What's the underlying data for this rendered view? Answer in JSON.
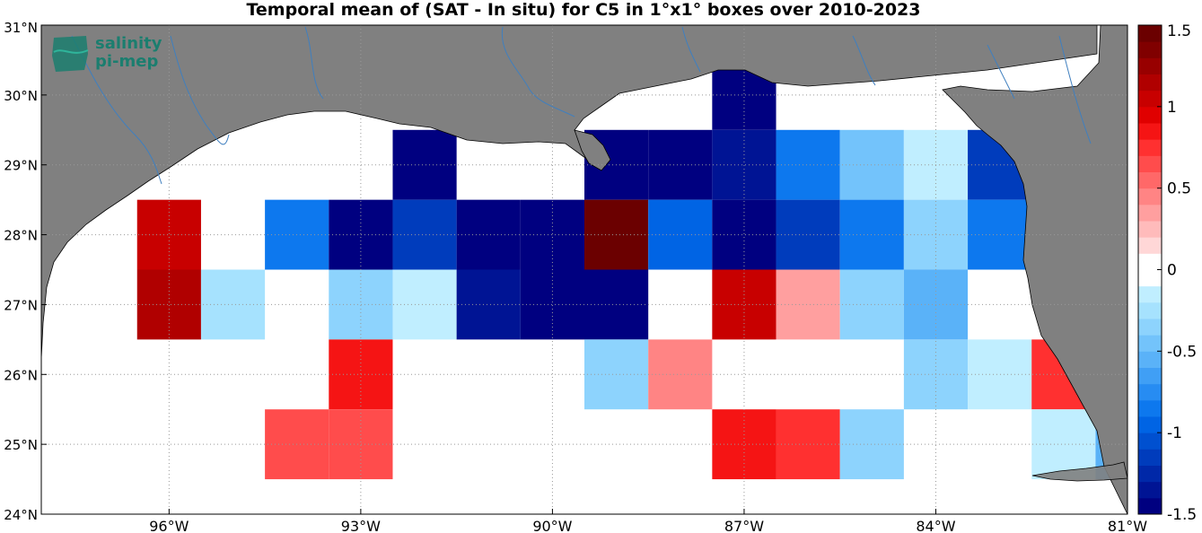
{
  "title": "Temporal mean of (SAT - In situ) for C5 in 1°x1° boxes over 2010-2023",
  "logo": {
    "line1": "salinity",
    "line2": "pi-mep",
    "color": "#1b7e6f"
  },
  "map": {
    "lon_range": [
      -98,
      -81
    ],
    "lat_range": [
      24,
      31
    ],
    "x_ticks": [
      {
        "value": -96,
        "label": "96°W"
      },
      {
        "value": -93,
        "label": "93°W"
      },
      {
        "value": -90,
        "label": "90°W"
      },
      {
        "value": -87,
        "label": "87°W"
      },
      {
        "value": -84,
        "label": "84°W"
      },
      {
        "value": -81,
        "label": "81°W"
      }
    ],
    "y_ticks": [
      {
        "value": 24,
        "label": "24°N"
      },
      {
        "value": 25,
        "label": "25°N"
      },
      {
        "value": 26,
        "label": "26°N"
      },
      {
        "value": 27,
        "label": "27°N"
      },
      {
        "value": 28,
        "label": "28°N"
      },
      {
        "value": 29,
        "label": "29°N"
      },
      {
        "value": 30,
        "label": "30°N"
      },
      {
        "value": 31,
        "label": "31°N"
      }
    ],
    "land_color": "#808080",
    "river_color": "#3f7fbf",
    "grid": true
  },
  "colorbar": {
    "min": -1.5,
    "max": 1.5,
    "ticks": [
      {
        "value": 1.5,
        "label": "1.5"
      },
      {
        "value": 1,
        "label": "1"
      },
      {
        "value": 0.5,
        "label": "0.5"
      },
      {
        "value": 0,
        "label": "0"
      },
      {
        "value": -0.5,
        "label": "-0.5"
      },
      {
        "value": -1,
        "label": "-1"
      },
      {
        "value": -1.5,
        "label": "-1.5"
      }
    ],
    "colors": [
      "#000080",
      "#001494",
      "#0028a8",
      "#003cbc",
      "#0050d0",
      "#0064e4",
      "#0d78ee",
      "#278cf2",
      "#409ff5",
      "#5ab2f8",
      "#73c3fb",
      "#8dd3fd",
      "#a6e2fe",
      "#c0eeff",
      "#ffffff",
      "#ffffff",
      "#ffd7d7",
      "#ffbbbb",
      "#ff9f9f",
      "#ff8484",
      "#ff6868",
      "#ff4c4c",
      "#ff3030",
      "#f51414",
      "#e00000",
      "#c80000",
      "#b00000",
      "#980000",
      "#800000",
      "#6b0000"
    ]
  },
  "chart_data": {
    "type": "heatmap",
    "title": "Temporal mean of (SAT - In situ) for C5 in 1°x1° boxes over 2010-2023",
    "x_label": "",
    "y_label": "",
    "cells": [
      {
        "lon": -96,
        "lat": 28,
        "value": 1.0
      },
      {
        "lon": -96,
        "lat": 27,
        "value": 1.1
      },
      {
        "lon": -95,
        "lat": 27,
        "value": -0.25
      },
      {
        "lon": -94,
        "lat": 28,
        "value": -0.8
      },
      {
        "lon": -93,
        "lat": 28,
        "value": -1.5
      },
      {
        "lon": -93,
        "lat": 27,
        "value": -0.4
      },
      {
        "lon": -93,
        "lat": 26,
        "value": 0.8
      },
      {
        "lon": -94,
        "lat": 25,
        "value": 0.6
      },
      {
        "lon": -93,
        "lat": 25,
        "value": 0.6
      },
      {
        "lon": -92,
        "lat": 29,
        "value": -1.5
      },
      {
        "lon": -92,
        "lat": 28,
        "value": -1.1
      },
      {
        "lon": -92,
        "lat": 27,
        "value": -0.15
      },
      {
        "lon": -91,
        "lat": 28,
        "value": -1.5
      },
      {
        "lon": -91,
        "lat": 27,
        "value": -1.35
      },
      {
        "lon": -90,
        "lat": 28,
        "value": -1.5
      },
      {
        "lon": -90,
        "lat": 27,
        "value": -1.5
      },
      {
        "lon": -89,
        "lat": 29,
        "value": -1.5
      },
      {
        "lon": -89,
        "lat": 28,
        "value": 1.45
      },
      {
        "lon": -89,
        "lat": 27,
        "value": -1.5
      },
      {
        "lon": -89,
        "lat": 26,
        "value": -0.3
      },
      {
        "lon": -88,
        "lat": 29,
        "value": -1.5
      },
      {
        "lon": -88,
        "lat": 28,
        "value": -0.9
      },
      {
        "lon": -88,
        "lat": 26,
        "value": 0.4
      },
      {
        "lon": -87,
        "lat": 30,
        "value": -1.5
      },
      {
        "lon": -87,
        "lat": 29,
        "value": -1.3
      },
      {
        "lon": -87,
        "lat": 28,
        "value": -1.5
      },
      {
        "lon": -87,
        "lat": 27,
        "value": 1.05
      },
      {
        "lon": -87,
        "lat": 25,
        "value": 0.8
      },
      {
        "lon": -86,
        "lat": 29,
        "value": -0.85
      },
      {
        "lon": -86,
        "lat": 28,
        "value": -1.1
      },
      {
        "lon": -86,
        "lat": 27,
        "value": 0.3
      },
      {
        "lon": -86,
        "lat": 25,
        "value": 0.7
      },
      {
        "lon": -85,
        "lat": 29,
        "value": -0.5
      },
      {
        "lon": -85,
        "lat": 28,
        "value": -0.8
      },
      {
        "lon": -85,
        "lat": 27,
        "value": -0.4
      },
      {
        "lon": -85,
        "lat": 25,
        "value": -0.35
      },
      {
        "lon": -84,
        "lat": 29,
        "value": -0.15
      },
      {
        "lon": -84,
        "lat": 28,
        "value": -0.4
      },
      {
        "lon": -84,
        "lat": 27,
        "value": -0.6
      },
      {
        "lon": -84,
        "lat": 26,
        "value": -0.3
      },
      {
        "lon": -83,
        "lat": 29,
        "value": -1.2
      },
      {
        "lon": -83,
        "lat": 28,
        "value": -0.8
      },
      {
        "lon": -83,
        "lat": 26,
        "value": -0.15
      },
      {
        "lon": -82,
        "lat": 26,
        "value": 0.7
      },
      {
        "lon": -82,
        "lat": 25,
        "value": -0.15
      },
      {
        "lon": -81,
        "lat": 25,
        "value": -0.6
      }
    ]
  }
}
